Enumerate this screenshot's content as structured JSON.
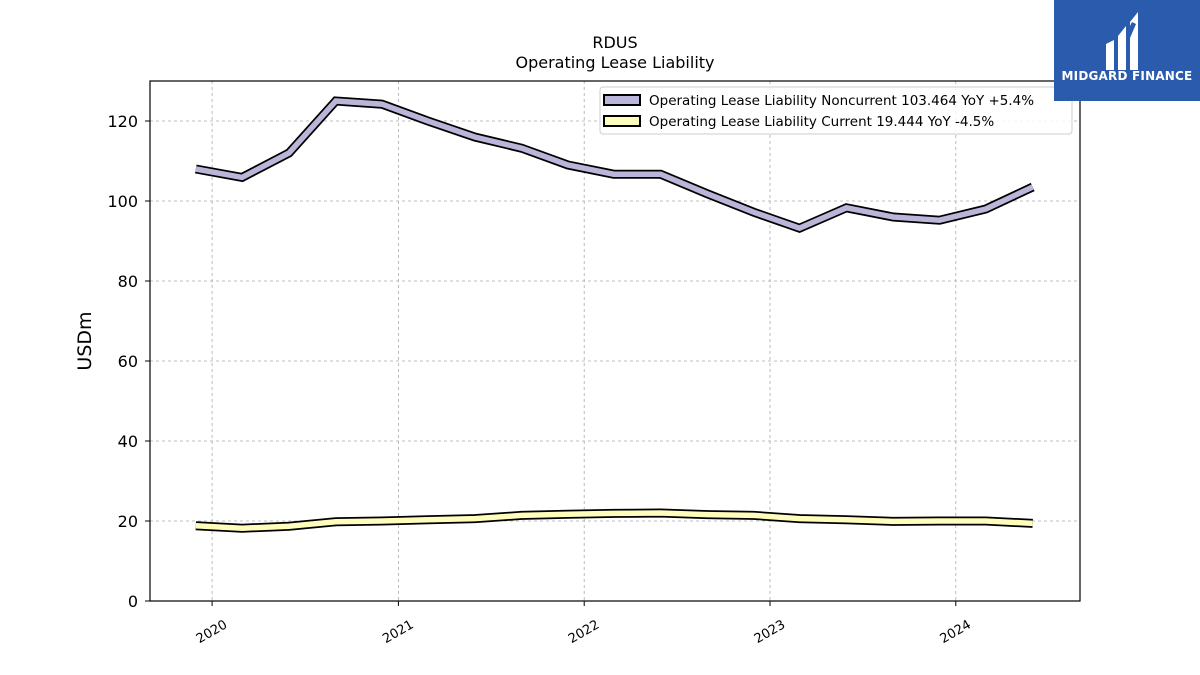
{
  "chart_data": {
    "type": "line",
    "title": "RDUS",
    "subtitle": "Operating Lease Liability",
    "xlabel": "",
    "ylabel": "USDm",
    "ylim": [
      0,
      130
    ],
    "yticks": [
      0,
      20,
      40,
      60,
      80,
      100,
      120
    ],
    "xlim": [
      "2019-09-01",
      "2024-09-01"
    ],
    "xticks": [
      "2020",
      "2021",
      "2022",
      "2023",
      "2024"
    ],
    "grid": true,
    "legend_position": "top-right",
    "x": [
      "2019-11-30",
      "2020-02-29",
      "2020-05-31",
      "2020-08-31",
      "2020-11-30",
      "2021-02-28",
      "2021-05-31",
      "2021-08-31",
      "2021-11-30",
      "2022-02-28",
      "2022-05-31",
      "2022-08-31",
      "2022-11-30",
      "2023-02-28",
      "2023-05-31",
      "2023-08-31",
      "2023-11-30",
      "2024-02-29",
      "2024-05-31"
    ],
    "series": [
      {
        "name": "Operating Lease Liability Noncurrent  103.464 YoY +5.4%",
        "color": "#b9b6d9",
        "values": [
          108.0,
          105.9,
          112.0,
          125.0,
          124.2,
          120.0,
          116.0,
          113.2,
          109.0,
          106.7,
          106.7,
          101.8,
          97.2,
          93.2,
          98.3,
          96.0,
          95.2,
          98.0,
          103.5
        ]
      },
      {
        "name": "Operating Lease Liability Current  19.444 YoY -4.5%",
        "color": "#fffdbb",
        "values": [
          18.8,
          18.2,
          18.7,
          19.8,
          20.0,
          20.3,
          20.6,
          21.4,
          21.7,
          21.9,
          22.0,
          21.6,
          21.4,
          20.6,
          20.3,
          19.9,
          20.0,
          20.0,
          19.4
        ]
      }
    ]
  },
  "logo": {
    "text": "MIDGARD FINANCE",
    "background": "#2b5bad"
  }
}
